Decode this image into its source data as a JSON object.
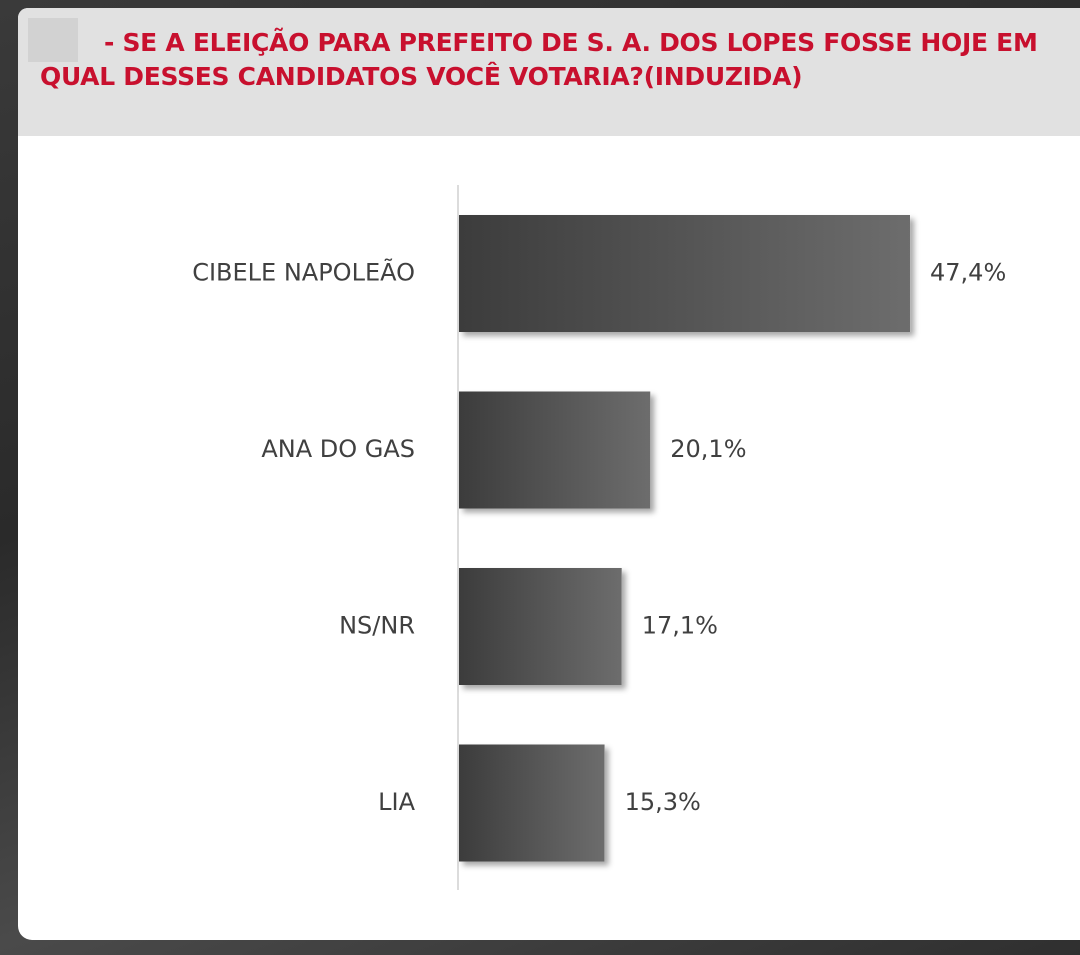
{
  "chart_data": {
    "type": "bar",
    "orientation": "horizontal",
    "title": "- SE A ELEIÇÃO PARA PREFEITO DE S. A. DOS LOPES FOSSE HOJE EM QUAL DESSES CANDIDATOS VOCÊ VOTARIA?(INDUZIDA)",
    "categories": [
      "CIBELE NAPOLEÃO",
      "ANA DO GAS",
      "NS/NR",
      "LIA"
    ],
    "values": [
      47.4,
      20.1,
      17.1,
      15.3
    ],
    "value_labels": [
      "47,4%",
      "20,1%",
      "17,1%",
      "15,3%"
    ],
    "color": "#3c3c3c"
  }
}
